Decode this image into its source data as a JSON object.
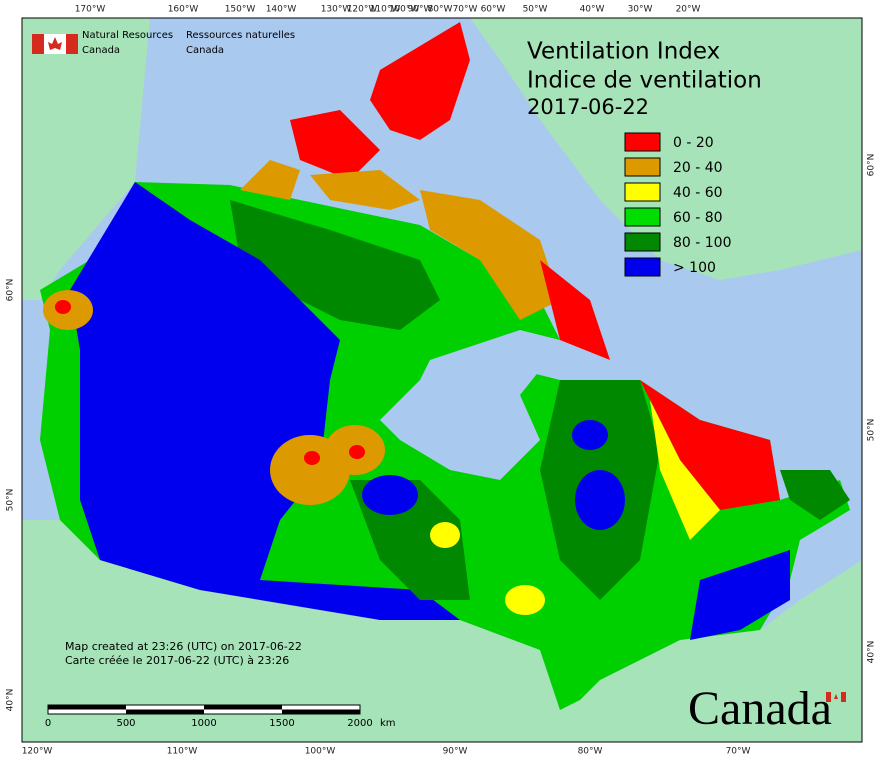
{
  "header": {
    "agency_en": [
      "Natural Resources",
      "Canada"
    ],
    "agency_fr": [
      "Ressources naturelles",
      "Canada"
    ]
  },
  "title": [
    "Ventilation Index",
    "Indice de ventilation",
    "2017-06-22"
  ],
  "legend": [
    {
      "label": "0 - 20",
      "color": "#ff0000"
    },
    {
      "label": "20 - 40",
      "color": "#dd9a00"
    },
    {
      "label": "40 - 60",
      "color": "#ffff00"
    },
    {
      "label": "60 - 80",
      "color": "#00dd00"
    },
    {
      "label": "80 - 100",
      "color": "#008800"
    },
    {
      "label": "> 100",
      "color": "#0000ee"
    }
  ],
  "graticule": {
    "top": [
      "170°W",
      "160°W",
      "150°W",
      "140°W",
      "130°W",
      "120°W",
      "110°W",
      "100°W",
      "90°W",
      "80°W",
      "70°W",
      "60°W",
      "50°W",
      "40°W",
      "30°W",
      "20°W"
    ],
    "bottom": [
      "120°W",
      "110°W",
      "100°W",
      "90°W",
      "80°W",
      "70°W"
    ],
    "left": [
      "60°N",
      "50°N",
      "40°N"
    ],
    "right": [
      "60°N",
      "50°N",
      "40°N"
    ]
  },
  "credits": [
    "Map created at 23:26 (UTC) on 2017-06-22",
    "Carte créée le 2017-06-22 (UTC) à 23:26"
  ],
  "scale_bar": {
    "labels": [
      "0",
      "500",
      "1000",
      "1500",
      "2000"
    ],
    "unit": "km"
  },
  "wordmark": "Canada"
}
